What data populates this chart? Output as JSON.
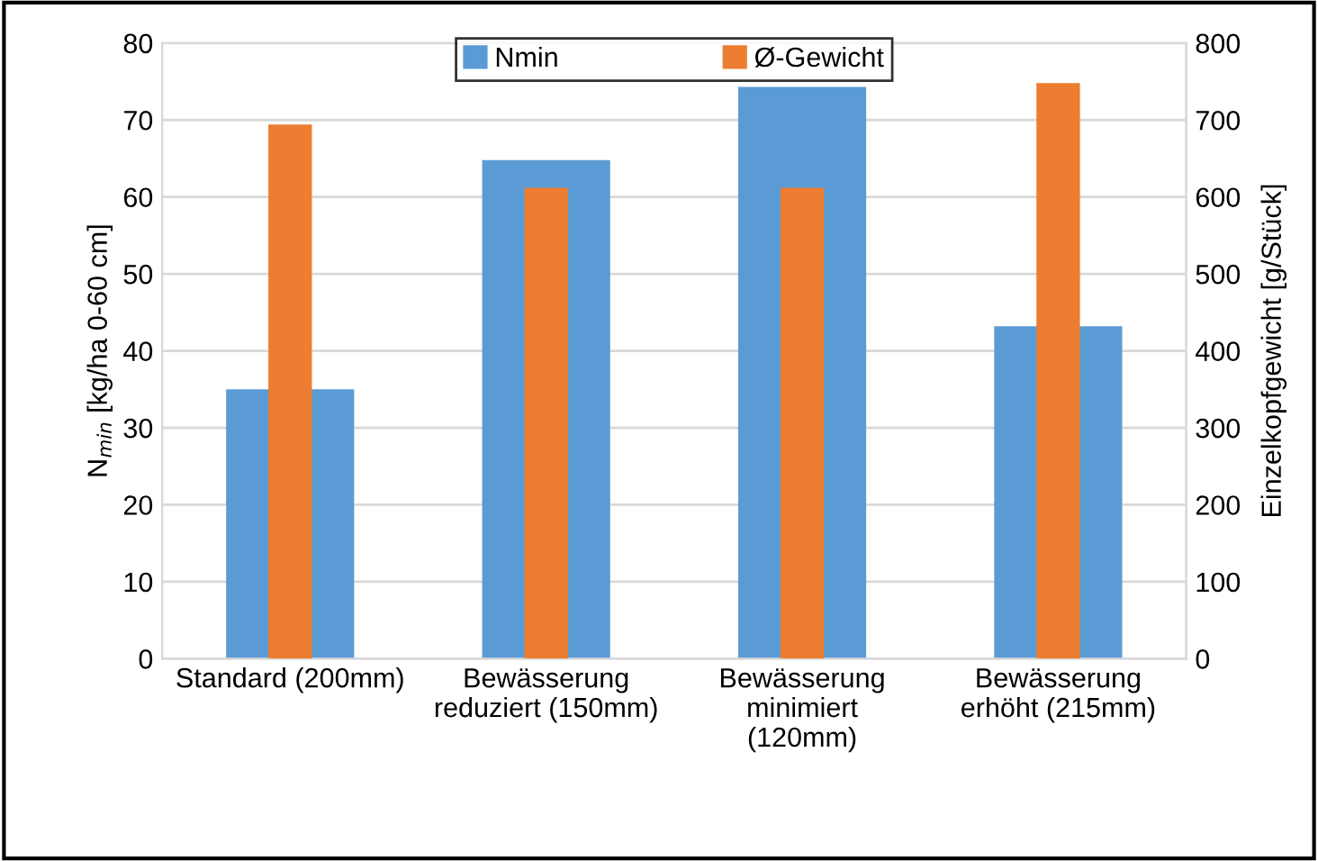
{
  "chart_data": {
    "type": "bar",
    "categories": [
      "Standard (200mm)",
      "Bewässerung\nreduziert (150mm)",
      "Bewässerung\nminimiert\n(120mm)",
      "Bewässerung\nerhöht (215mm)"
    ],
    "series": [
      {
        "name": "Nmin",
        "color": "#5b9bd5",
        "values": [
          35,
          64.8,
          74.3,
          43.2
        ]
      },
      {
        "name": "Ø-Gewicht",
        "color": "#ed7d31",
        "values": [
          694,
          612,
          612,
          748
        ],
        "axis": "y2"
      }
    ],
    "ylabel": "N$_{min}$ [kg/ha 0-60 cm]",
    "y2label": "Einzelkopfgewicht [g/Stück]",
    "ylim": [
      0,
      80
    ],
    "yticks": [
      0,
      10,
      20,
      30,
      40,
      50,
      60,
      70,
      80
    ],
    "y2lim": [
      0,
      800
    ],
    "y2ticks": [
      0,
      100,
      200,
      300,
      400,
      500,
      600,
      700,
      800
    ],
    "grid": "y",
    "legend": "top"
  }
}
